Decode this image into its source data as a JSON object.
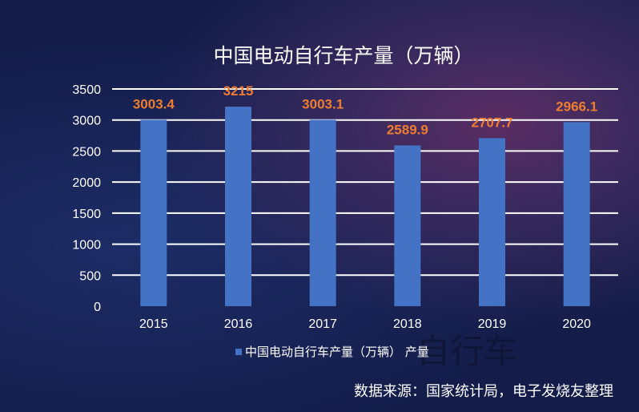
{
  "chart_data": {
    "type": "bar",
    "title": "中国电动自行车产量（万辆）",
    "categories": [
      "2015",
      "2016",
      "2017",
      "2018",
      "2019",
      "2020"
    ],
    "series": [
      {
        "name": "中国电动自行车产量（万辆） 产量",
        "values": [
          3003.4,
          3215,
          3003.1,
          2589.9,
          2707.7,
          2966.1
        ]
      }
    ],
    "data_labels": [
      "3003.4",
      "3215",
      "3003.1",
      "2589.9",
      "2707.7",
      "2966.1"
    ],
    "yticks": [
      0,
      500,
      1000,
      1500,
      2000,
      2500,
      3000,
      3500
    ],
    "ylim": [
      0,
      3500
    ],
    "grid": true,
    "legend": "bottom",
    "colors": {
      "bar": "#4472c4",
      "label": "#ed7d31",
      "grid": "#ffffff"
    }
  },
  "watermark": "自行车",
  "source": "数据来源：国家统计局，电子发烧友整理"
}
